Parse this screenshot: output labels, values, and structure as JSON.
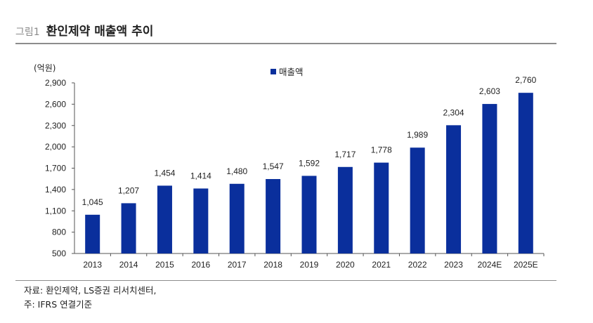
{
  "header": {
    "fig_label": "그림1",
    "title": "환인제약 매출액 추이"
  },
  "footer": {
    "source": "자료: 환인제약, LS증권 리서치센터,",
    "note": "주: IFRS 연결기준"
  },
  "colors": {
    "bar": "#0a2f9c",
    "rule": "#8c8c8c"
  },
  "chart_data": {
    "type": "bar",
    "unit_label": "(억원)",
    "categories": [
      "2013",
      "2014",
      "2015",
      "2016",
      "2017",
      "2018",
      "2019",
      "2020",
      "2021",
      "2022",
      "2023",
      "2024E",
      "2025E"
    ],
    "series": [
      {
        "name": "매출액",
        "values": [
          1045,
          1207,
          1454,
          1414,
          1480,
          1547,
          1592,
          1717,
          1778,
          1989,
          2304,
          2603,
          2760
        ],
        "labels": [
          "1,045",
          "1,207",
          "1,454",
          "1,414",
          "1,480",
          "1,547",
          "1,592",
          "1,717",
          "1,778",
          "1,989",
          "2,304",
          "2,603",
          "2,760"
        ]
      }
    ],
    "yticks": [
      500,
      800,
      1100,
      1400,
      1700,
      2000,
      2300,
      2600,
      2900
    ],
    "ytick_labels": [
      "500",
      "800",
      "1,100",
      "1,400",
      "1,700",
      "2,000",
      "2,300",
      "2,600",
      "2,900"
    ],
    "ylim": [
      500,
      2900
    ],
    "legend_position": "top-center",
    "grid": false
  }
}
